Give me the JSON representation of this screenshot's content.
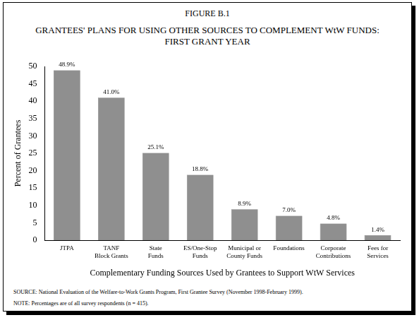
{
  "chart_data": {
    "type": "bar",
    "figure_label": "FIGURE B.1",
    "title": [
      "GRANTEES' PLANS FOR USING OTHER SOURCES TO COMPLEMENT WtW FUNDS:",
      "FIRST GRANT YEAR"
    ],
    "x_label": "Complementary Funding Sources Used by Grantees to Support WtW Services",
    "y_label": "Percent of Grantees",
    "categories": [
      [
        "JTPA"
      ],
      [
        "TANF",
        "Block Grants"
      ],
      [
        "State",
        "Funds"
      ],
      [
        "ES/One-Stop",
        "Funds"
      ],
      [
        "Municipal or",
        "County Funds"
      ],
      [
        "Foundations"
      ],
      [
        "Corporate",
        "Contributions"
      ],
      [
        "Fees for",
        "Services"
      ]
    ],
    "values": [
      48.9,
      41.0,
      25.1,
      18.8,
      8.9,
      7.0,
      4.8,
      1.4
    ],
    "value_labels": [
      "48.9%",
      "41.0%",
      "25.1%",
      "18.8%",
      "8.9%",
      "7.0%",
      "4.8%",
      "1.4%"
    ],
    "data_labels": true,
    "color": "#8f8f8f",
    "ylim": [
      0,
      50
    ],
    "yticks": [
      0,
      5,
      10,
      15,
      20,
      25,
      30,
      35,
      40,
      45,
      50
    ],
    "grid": false,
    "source": "SOURCE:  National Evaluation of the Welfare-to-Work Grants Program, First Grantee Survey (November 1998-February 1999).",
    "note": "NOTE:  Percentages are of all survey respondents (n = 415)."
  }
}
